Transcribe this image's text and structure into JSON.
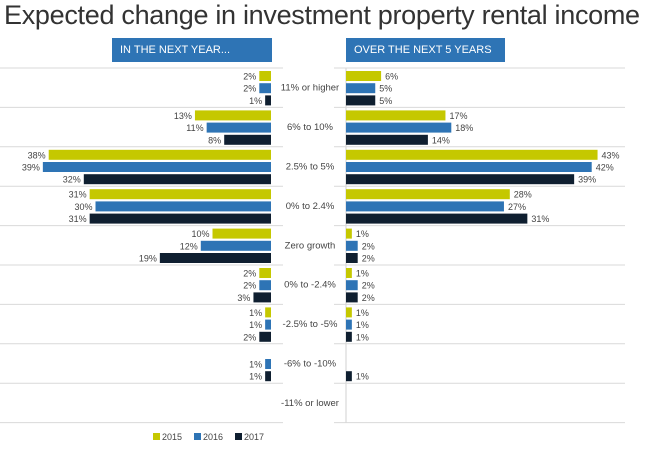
{
  "chart_data": {
    "type": "bar",
    "title": "Expected change in investment property rental income",
    "panels": [
      {
        "header": "IN THE NEXT YEAR...",
        "orientation": "leftward"
      },
      {
        "header": "OVER THE NEXT 5 YEARS",
        "orientation": "rightward"
      }
    ],
    "categories": [
      "11% or higher",
      "6% to 10%",
      "2.5% to 5%",
      "0% to 2.4%",
      "Zero growth",
      "0% to -2.4%",
      "-2.5% to -5%",
      "-6% to -10%",
      "-11% or lower"
    ],
    "series": [
      {
        "name": "2015",
        "color": "#c5c800",
        "next_year": [
          2,
          13,
          38,
          31,
          10,
          2,
          1,
          null,
          null
        ],
        "next_5_years": [
          6,
          17,
          43,
          28,
          1,
          1,
          1,
          null,
          null
        ]
      },
      {
        "name": "2016",
        "color": "#2e74b5",
        "next_year": [
          2,
          11,
          39,
          30,
          12,
          2,
          1,
          1,
          null
        ],
        "next_5_years": [
          5,
          18,
          42,
          27,
          2,
          2,
          1,
          null,
          null
        ]
      },
      {
        "name": "2017",
        "color": "#0f1f30",
        "next_year": [
          1,
          8,
          32,
          31,
          19,
          3,
          2,
          1,
          null
        ],
        "next_5_years": [
          5,
          14,
          39,
          31,
          2,
          2,
          1,
          1,
          null
        ]
      }
    ],
    "value_suffix": "%",
    "legend_position": "bottom-left"
  }
}
